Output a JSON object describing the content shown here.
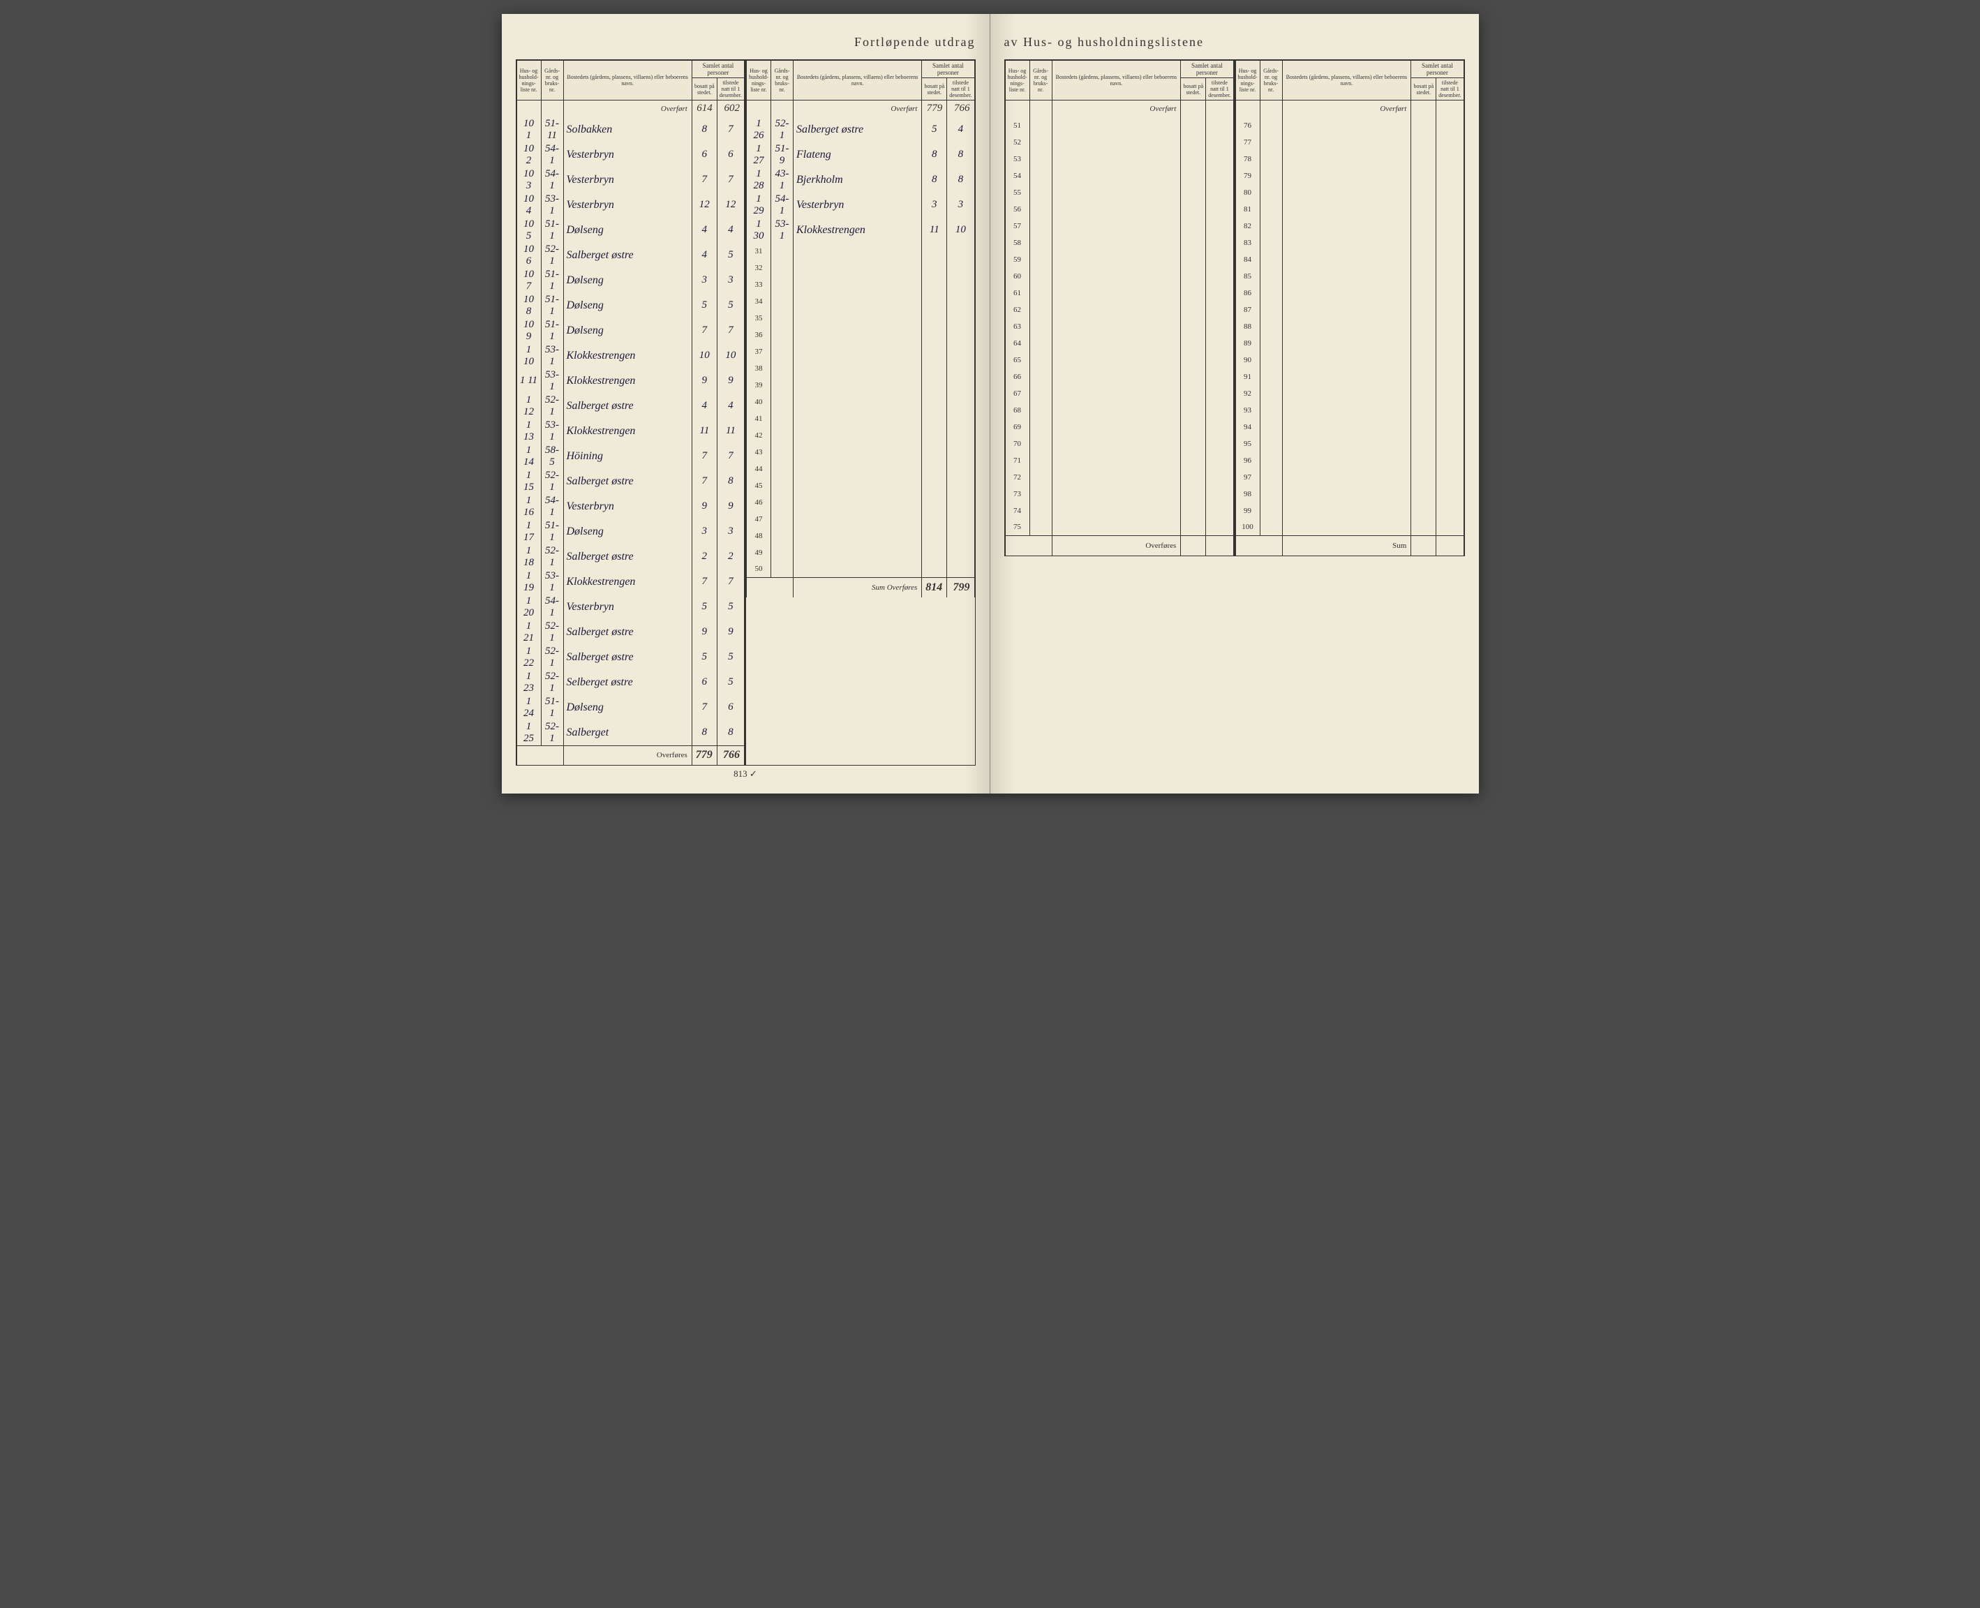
{
  "title_left": "Fortløpende utdrag",
  "title_right": "av Hus- og husholdningslistene",
  "headers": {
    "liste": "Hus- og hushold-nings-liste nr.",
    "gard": "Gårds-nr. og bruks-nr.",
    "navn": "Bostedets (gårdens, plassens, villaens) eller beboerens navn.",
    "samlet": "Samlet antal personer",
    "bosatt": "bosatt på stedet.",
    "tilstede": "tilstede natt til 1 desember."
  },
  "overfort_label": "Overført",
  "overfores_label": "Overføres",
  "sum_label": "Sum",
  "below_note": "813    ✓",
  "left_page": {
    "col1": {
      "overfort_hw": "Overført",
      "overfort_bosatt": "614",
      "overfort_tilstede": "602",
      "rows": [
        {
          "n": "10 1",
          "g": "51-11",
          "navn": "Solbakken",
          "b": "8",
          "t": "7"
        },
        {
          "n": "10 2",
          "g": "54-1",
          "navn": "Vesterbryn",
          "b": "6",
          "t": "6"
        },
        {
          "n": "10 3",
          "g": "54-1",
          "navn": "Vesterbryn",
          "b": "7",
          "t": "7"
        },
        {
          "n": "10 4",
          "g": "53-1",
          "navn": "Vesterbryn",
          "b": "12",
          "t": "12"
        },
        {
          "n": "10 5",
          "g": "51-1",
          "navn": "Dølseng",
          "b": "4",
          "t": "4"
        },
        {
          "n": "10 6",
          "g": "52-1",
          "navn": "Salberget østre",
          "b": "4",
          "t": "5"
        },
        {
          "n": "10 7",
          "g": "51-1",
          "navn": "Dølseng",
          "b": "3",
          "t": "3"
        },
        {
          "n": "10 8",
          "g": "51-1",
          "navn": "Dølseng",
          "b": "5",
          "t": "5"
        },
        {
          "n": "10 9",
          "g": "51-1",
          "navn": "Dølseng",
          "b": "7",
          "t": "7"
        },
        {
          "n": "1 10",
          "g": "53-1",
          "navn": "Klokkestrengen",
          "b": "10",
          "t": "10"
        },
        {
          "n": "1 11",
          "g": "53-1",
          "navn": "Klokkestrengen",
          "b": "9",
          "t": "9"
        },
        {
          "n": "1 12",
          "g": "52-1",
          "navn": "Salberget østre",
          "b": "4",
          "t": "4"
        },
        {
          "n": "1 13",
          "g": "53-1",
          "navn": "Klokkestrengen",
          "b": "11",
          "t": "11"
        },
        {
          "n": "1 14",
          "g": "58-5",
          "navn": "Höining",
          "b": "7",
          "t": "7"
        },
        {
          "n": "1 15",
          "g": "52-1",
          "navn": "Salberget østre",
          "b": "7",
          "t": "8"
        },
        {
          "n": "1 16",
          "g": "54-1",
          "navn": "Vesterbryn",
          "b": "9",
          "t": "9"
        },
        {
          "n": "1 17",
          "g": "51-1",
          "navn": "Dølseng",
          "b": "3",
          "t": "3"
        },
        {
          "n": "1 18",
          "g": "52-1",
          "navn": "Salberget østre",
          "b": "2",
          "t": "2"
        },
        {
          "n": "1 19",
          "g": "53-1",
          "navn": "Klokkestrengen",
          "b": "7",
          "t": "7"
        },
        {
          "n": "1 20",
          "g": "54-1",
          "navn": "Vesterbryn",
          "b": "5",
          "t": "5"
        },
        {
          "n": "1 21",
          "g": "52-1",
          "navn": "Salberget østre",
          "b": "9",
          "t": "9"
        },
        {
          "n": "1 22",
          "g": "52-1",
          "navn": "Salberget østre",
          "b": "5",
          "t": "5"
        },
        {
          "n": "1 23",
          "g": "52-1",
          "navn": "Selberget østre",
          "b": "6",
          "t": "5"
        },
        {
          "n": "1 24",
          "g": "51-1",
          "navn": "Dølseng",
          "b": "7",
          "t": "6"
        },
        {
          "n": "1 25",
          "g": "52-1",
          "navn": "Salberget",
          "b": "8",
          "t": "8"
        }
      ],
      "footer_bosatt": "779",
      "footer_tilstede": "766"
    },
    "col2": {
      "overfort_bosatt": "779",
      "overfort_tilstede": "766",
      "rows": [
        {
          "n": "1 26",
          "g": "52-1",
          "navn": "Salberget østre",
          "b": "5",
          "t": "4"
        },
        {
          "n": "1 27",
          "g": "51-9",
          "navn": "Flateng",
          "b": "8",
          "t": "8"
        },
        {
          "n": "1 28",
          "g": "43-1",
          "navn": "Bjerkholm",
          "b": "8",
          "t": "8"
        },
        {
          "n": "1 29",
          "g": "54-1",
          "navn": "Vesterbryn",
          "b": "3",
          "t": "3"
        },
        {
          "n": "1 30",
          "g": "53-1",
          "navn": "Klokkestrengen",
          "b": "11",
          "t": "10"
        },
        {
          "n": "31",
          "g": "",
          "navn": "",
          "b": "",
          "t": ""
        },
        {
          "n": "32",
          "g": "",
          "navn": "",
          "b": "",
          "t": ""
        },
        {
          "n": "33",
          "g": "",
          "navn": "",
          "b": "",
          "t": ""
        },
        {
          "n": "34",
          "g": "",
          "navn": "",
          "b": "",
          "t": ""
        },
        {
          "n": "35",
          "g": "",
          "navn": "",
          "b": "",
          "t": ""
        },
        {
          "n": "36",
          "g": "",
          "navn": "",
          "b": "",
          "t": ""
        },
        {
          "n": "37",
          "g": "",
          "navn": "",
          "b": "",
          "t": ""
        },
        {
          "n": "38",
          "g": "",
          "navn": "",
          "b": "",
          "t": ""
        },
        {
          "n": "39",
          "g": "",
          "navn": "",
          "b": "",
          "t": ""
        },
        {
          "n": "40",
          "g": "",
          "navn": "",
          "b": "",
          "t": ""
        },
        {
          "n": "41",
          "g": "",
          "navn": "",
          "b": "",
          "t": ""
        },
        {
          "n": "42",
          "g": "",
          "navn": "",
          "b": "",
          "t": ""
        },
        {
          "n": "43",
          "g": "",
          "navn": "",
          "b": "",
          "t": ""
        },
        {
          "n": "44",
          "g": "",
          "navn": "",
          "b": "",
          "t": ""
        },
        {
          "n": "45",
          "g": "",
          "navn": "",
          "b": "",
          "t": ""
        },
        {
          "n": "46",
          "g": "",
          "navn": "",
          "b": "",
          "t": ""
        },
        {
          "n": "47",
          "g": "",
          "navn": "",
          "b": "",
          "t": ""
        },
        {
          "n": "48",
          "g": "",
          "navn": "",
          "b": "",
          "t": ""
        },
        {
          "n": "49",
          "g": "",
          "navn": "",
          "b": "",
          "t": ""
        },
        {
          "n": "50",
          "g": "",
          "navn": "",
          "b": "",
          "t": ""
        }
      ],
      "footer_label": "Sum Overføres",
      "footer_bosatt": "814",
      "footer_tilstede": "799"
    }
  },
  "right_page": {
    "col1": {
      "start": 51,
      "end": 75
    },
    "col2": {
      "start": 76,
      "end": 100
    }
  }
}
